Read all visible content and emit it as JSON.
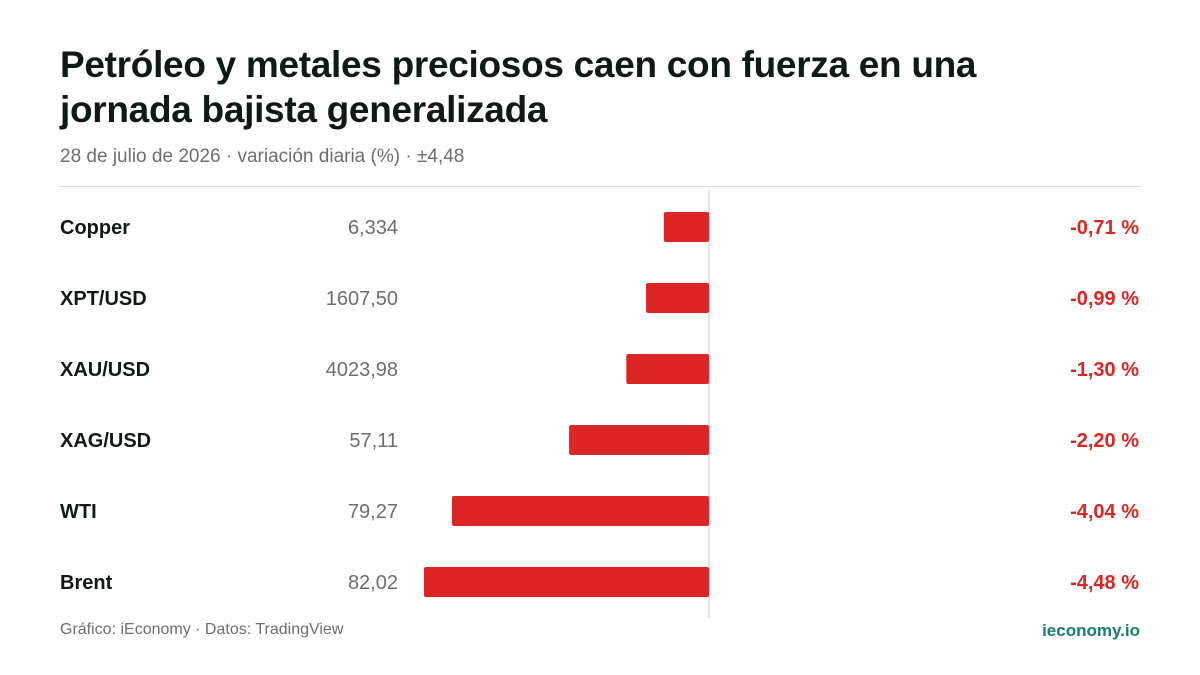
{
  "header": {
    "title": "Petróleo y metales preciosos caen con fuerza en una jornada bajista generalizada",
    "subtitle": "28 de julio de 2026 · variación diaria (%) · ±4,48"
  },
  "footer": {
    "source": "Gráfico: iEconomy · Datos: TradingView",
    "brand": "ieconomy.io"
  },
  "colors": {
    "negative": "#dc2626",
    "label": "#0f1a14",
    "value": "#6b6f6d",
    "brand": "#17806b"
  },
  "chart_data": {
    "type": "bar",
    "orientation": "horizontal",
    "categories": [
      "Copper",
      "XPT/USD",
      "XAU/USD",
      "XAG/USD",
      "WTI",
      "Brent"
    ],
    "prices": [
      "6,334",
      "1607,50",
      "4023,98",
      "57,11",
      "79,27",
      "82,02"
    ],
    "values": [
      -0.71,
      -0.99,
      -1.3,
      -2.2,
      -4.04,
      -4.48
    ],
    "value_labels": [
      "-0,71 %",
      "-0,99 %",
      "-1,30 %",
      "-2,20 %",
      "-4,04 %",
      "-4,48 %"
    ],
    "xlim": [
      -4.48,
      4.48
    ],
    "grid": false
  }
}
